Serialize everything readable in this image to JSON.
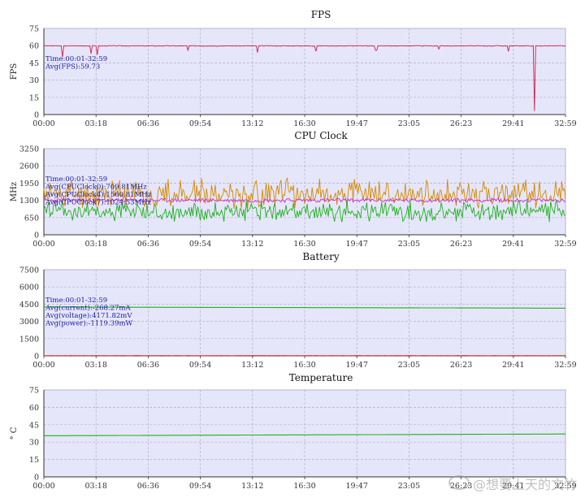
{
  "time_ticks": [
    "00:00",
    "03:18",
    "06:36",
    "09:54",
    "13:12",
    "16:30",
    "19:47",
    "23:05",
    "26:23",
    "29:41",
    "32:59"
  ],
  "watermark": "@想要上天的文竹",
  "chart_data": [
    {
      "type": "line",
      "title": "FPS",
      "ylabel": "FPS",
      "ylim": [
        0,
        75
      ],
      "y_ticks": [
        0,
        15,
        30,
        45,
        60,
        75
      ],
      "grid": true,
      "annotations": [
        "Time:00:01-32:59",
        "Avg(FPS):59.73"
      ],
      "series": [
        {
          "color": "#d0204a",
          "baseline": 59.8,
          "noise": 0.6,
          "seed": 3,
          "dips": [
            [
              1.2,
              50
            ],
            [
              3.0,
              53
            ],
            [
              3.4,
              52
            ],
            [
              9.1,
              56
            ],
            [
              13.5,
              54
            ],
            [
              17.2,
              55
            ],
            [
              21.0,
              56
            ],
            [
              25.0,
              57
            ],
            [
              29.4,
              55
            ],
            [
              31.0,
              3
            ]
          ]
        }
      ]
    },
    {
      "type": "line",
      "title": "CPU Clock",
      "ylabel": "MHz",
      "ylim": [
        0,
        3250
      ],
      "y_ticks": [
        0,
        650,
        1300,
        1950,
        2600,
        3250
      ],
      "grid": true,
      "annotations": [
        "Time:00:01-32:59",
        "Avg(CPUClock0):709.81MHz",
        "Avg(CPUClock4):1560.81MHz",
        "Avg(CPUClock7):1024.53MHz"
      ],
      "series": [
        {
          "color": "#d48a00",
          "baseline": 1500,
          "noise": 900,
          "seed": 11,
          "spiky": true
        },
        {
          "color": "#cc33cc",
          "baseline": 1300,
          "noise": 150,
          "seed": 23
        },
        {
          "color": "#1db31d",
          "baseline": 850,
          "noise": 650,
          "seed": 37,
          "spiky": true
        }
      ]
    },
    {
      "type": "line",
      "title": "Battery",
      "ylim": [
        0,
        7500
      ],
      "y_ticks": [
        0,
        1500,
        3000,
        4500,
        6000,
        7500
      ],
      "grid": true,
      "annotations": [
        "Time:00:01-32:59",
        "Avg(current):-268.27mA",
        "Avg(voltage):4171.82mV",
        "Avg(power):-1119.39mW"
      ],
      "series": [
        {
          "color": "#1db31d",
          "baseline": 4250,
          "end": 4150,
          "noise": 0,
          "seed": 5
        },
        {
          "color": "#cc3333",
          "baseline": 20,
          "noise": 15,
          "seed": 7
        }
      ]
    },
    {
      "type": "line",
      "title": "Temperature",
      "ylabel": "° C",
      "ylim": [
        0,
        75
      ],
      "y_ticks": [
        0,
        15,
        30,
        45,
        60,
        75
      ],
      "grid": true,
      "series": [
        {
          "color": "#1db31d",
          "baseline": 35.5,
          "end": 37,
          "noise": 0,
          "seed": 9
        }
      ]
    }
  ]
}
